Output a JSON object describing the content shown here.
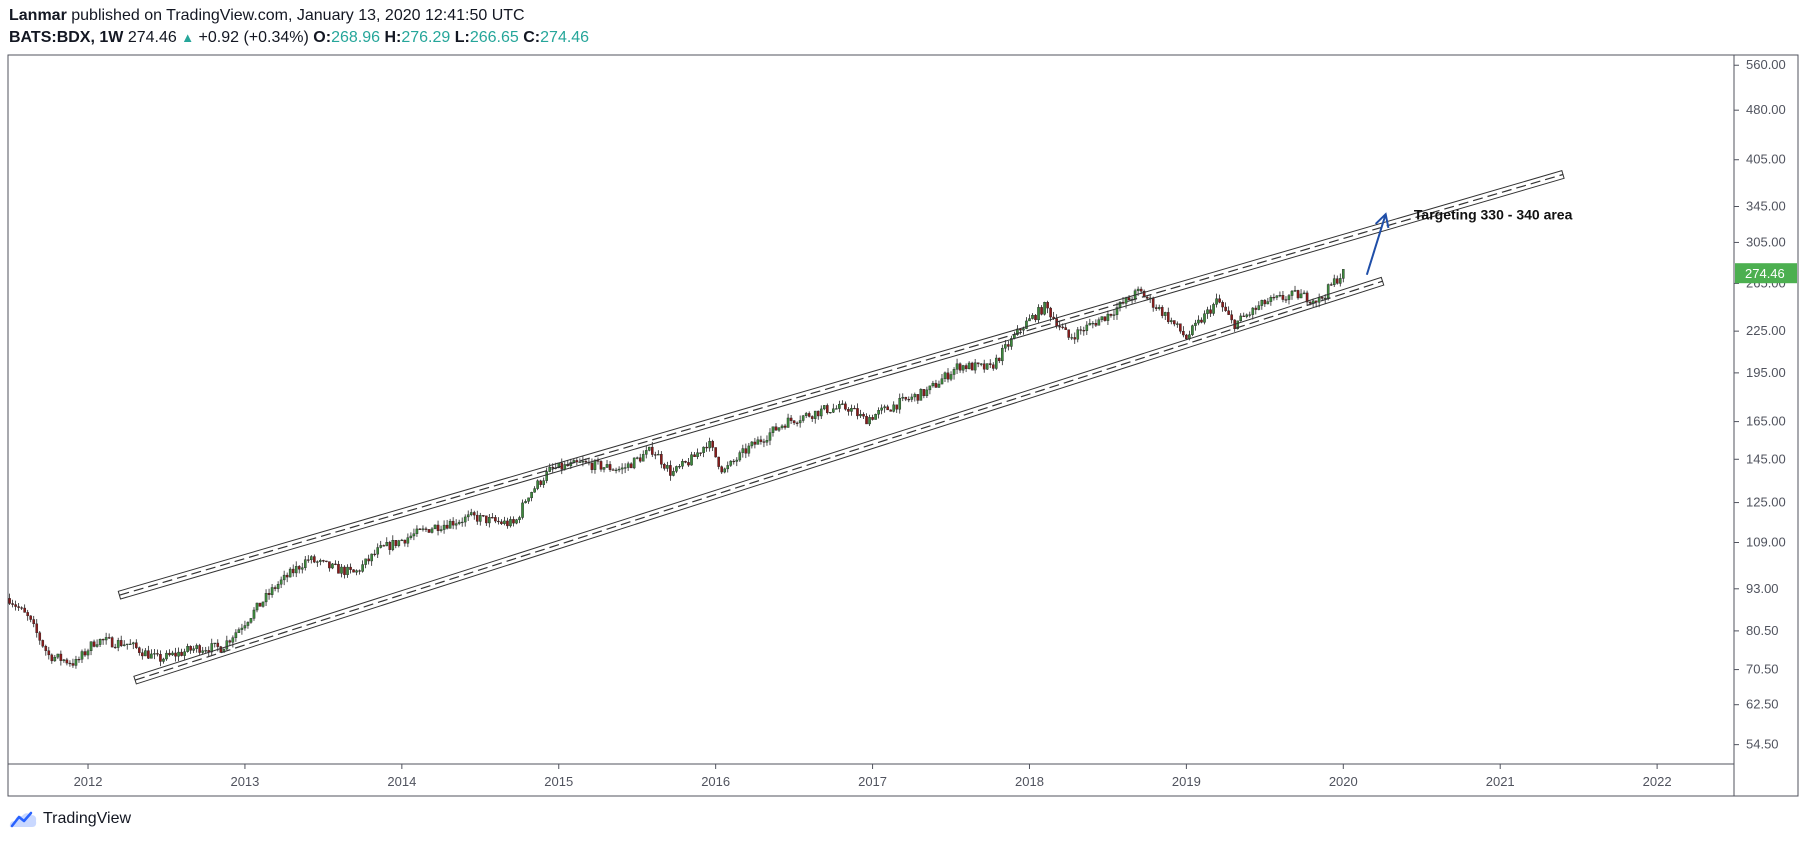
{
  "header": {
    "author": "Lanmar",
    "published_text": "published on TradingView.com, January 13, 2020 12:41:50 UTC",
    "symbol": "BATS:BDX, 1W",
    "last": "274.46",
    "change_arrow": "▲",
    "change": "+0.92 (+0.34%)",
    "open_label": "O:",
    "open": "268.96",
    "high_label": "H:",
    "high": "276.29",
    "low_label": "L:",
    "low": "266.65",
    "close_label": "C:",
    "close": "274.46"
  },
  "footer": {
    "brand": "TradingView",
    "logo_icon": "tradingview-cloud-icon"
  },
  "colors": {
    "up": "#26a69a",
    "down": "#ef5350",
    "badge": "#4caf50",
    "candle_up": "#3c8a3c",
    "candle_down": "#8b1a1a",
    "arrow": "#1f4ea8"
  },
  "chart_data": {
    "type": "candlestick",
    "symbol": "BATS:BDX",
    "interval": "1W",
    "y_scale": "log",
    "ylim": [
      51,
      580
    ],
    "xlim": [
      2011.49,
      2022.49
    ],
    "y_ticks": [
      "560.00",
      "480.00",
      "405.00",
      "345.00",
      "305.00",
      "265.00",
      "225.00",
      "195.00",
      "165.00",
      "145.00",
      "125.00",
      "109.00",
      "93.00",
      "80.50",
      "70.50",
      "62.50",
      "54.50"
    ],
    "x_ticks": [
      "2012",
      "2013",
      "2014",
      "2015",
      "2016",
      "2017",
      "2018",
      "2019",
      "2020",
      "2021",
      "2022"
    ],
    "last_price_badge": "274.46",
    "price_path": [
      [
        2011.5,
        90
      ],
      [
        2011.62,
        84
      ],
      [
        2011.75,
        74
      ],
      [
        2011.92,
        72
      ],
      [
        2012.05,
        78
      ],
      [
        2012.25,
        77
      ],
      [
        2012.45,
        73
      ],
      [
        2012.7,
        76
      ],
      [
        2012.85,
        76
      ],
      [
        2013.0,
        83
      ],
      [
        2013.2,
        94
      ],
      [
        2013.4,
        103
      ],
      [
        2013.55,
        100
      ],
      [
        2013.7,
        98
      ],
      [
        2013.85,
        106
      ],
      [
        2014.0,
        110
      ],
      [
        2014.2,
        115
      ],
      [
        2014.45,
        119
      ],
      [
        2014.6,
        117
      ],
      [
        2014.72,
        116
      ],
      [
        2014.8,
        128
      ],
      [
        2014.95,
        140
      ],
      [
        2015.15,
        143
      ],
      [
        2015.4,
        140
      ],
      [
        2015.6,
        150
      ],
      [
        2015.72,
        138
      ],
      [
        2015.85,
        145
      ],
      [
        2015.95,
        154
      ],
      [
        2016.05,
        139
      ],
      [
        2016.2,
        150
      ],
      [
        2016.45,
        165
      ],
      [
        2016.7,
        172
      ],
      [
        2016.85,
        173
      ],
      [
        2016.95,
        166
      ],
      [
        2017.15,
        175
      ],
      [
        2017.35,
        183
      ],
      [
        2017.55,
        200
      ],
      [
        2017.75,
        198
      ],
      [
        2017.95,
        228
      ],
      [
        2018.1,
        245
      ],
      [
        2018.25,
        220
      ],
      [
        2018.5,
        238
      ],
      [
        2018.7,
        258
      ],
      [
        2018.85,
        240
      ],
      [
        2019.0,
        220
      ],
      [
        2019.2,
        250
      ],
      [
        2019.3,
        230
      ],
      [
        2019.5,
        248
      ],
      [
        2019.7,
        255
      ],
      [
        2019.85,
        250
      ],
      [
        2019.95,
        268
      ],
      [
        2020.0,
        274.46
      ]
    ],
    "channel": {
      "upper": {
        "x": [
          2012.2,
          2021.4
        ],
        "y": [
          91,
          385
        ]
      },
      "lower": {
        "x": [
          2012.3,
          2020.25
        ],
        "y": [
          68,
          267
        ]
      }
    },
    "annotation": "Targeting 330 - 340 area"
  }
}
